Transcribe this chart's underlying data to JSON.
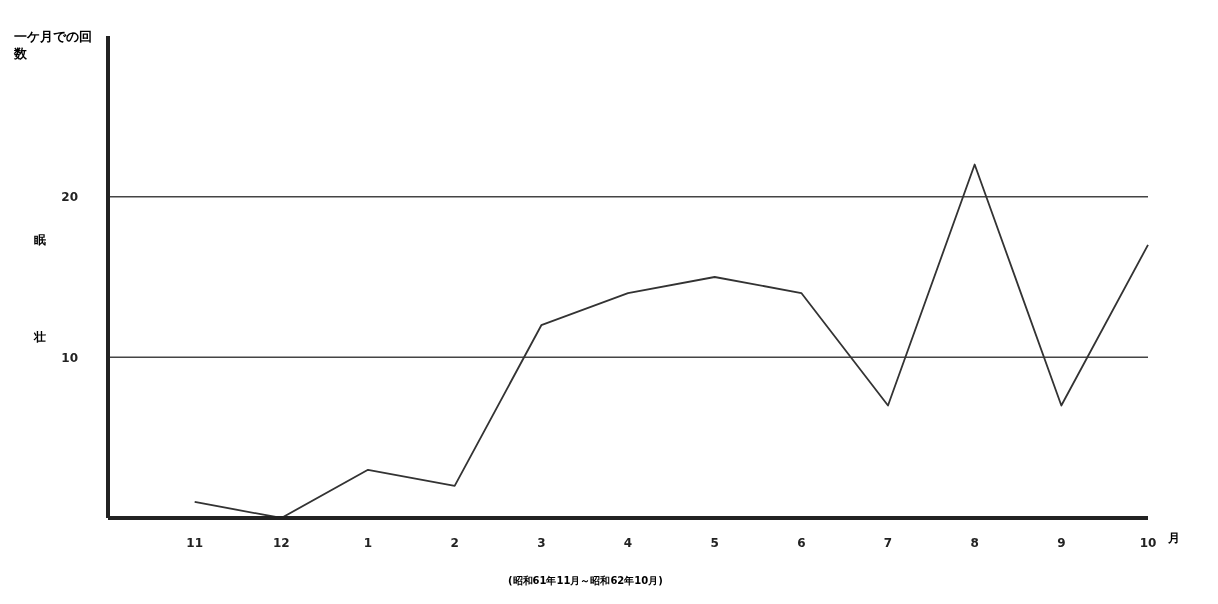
{
  "chart_data": {
    "type": "line",
    "ylabel": "一ケ月での回数",
    "xlabel": "月",
    "categories": [
      "11",
      "12",
      "1",
      "2",
      "3",
      "4",
      "5",
      "6",
      "7",
      "8",
      "9",
      "10"
    ],
    "series": [
      {
        "color": "#333333",
        "values": [
          1,
          0,
          3,
          2,
          12,
          14,
          15,
          14,
          7,
          22,
          7,
          17
        ]
      }
    ],
    "ylim": [
      0,
      30
    ],
    "yticks": [
      10,
      20
    ],
    "grid": false,
    "legend": false,
    "marker": "none",
    "line_style": "solid",
    "ref_lines": [
      {
        "axis": "y",
        "value": 20,
        "color": "#444444"
      },
      {
        "axis": "y",
        "value": 10,
        "color": "#444444"
      }
    ],
    "annotations": [
      "眠",
      "壮",
      "(昭和61年11月～昭和62年10月)"
    ]
  }
}
